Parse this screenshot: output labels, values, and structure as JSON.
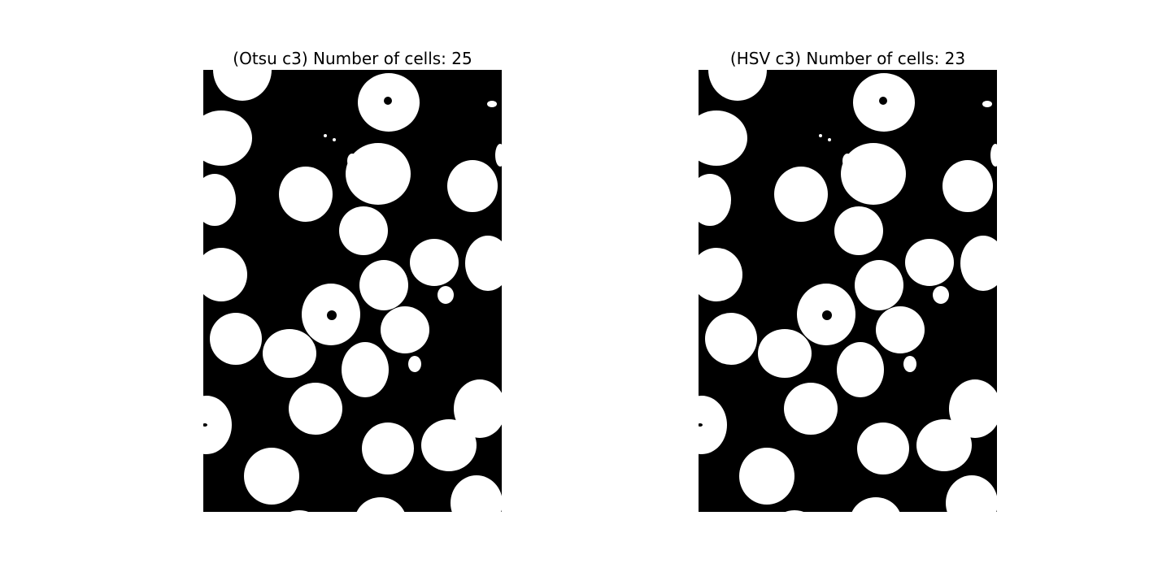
{
  "figure": {
    "panels": [
      {
        "title": "(Otsu c3) Number of cells: 25",
        "method": "Otsu c3",
        "cell_count": 25,
        "image_kind": "binary segmentation mask"
      },
      {
        "title": "(HSV c3) Number of cells: 23",
        "method": "HSV c3",
        "cell_count": 23,
        "image_kind": "binary segmentation mask"
      }
    ],
    "colors": {
      "background": "#000000",
      "foreground": "#ffffff",
      "page": "#ffffff"
    }
  }
}
